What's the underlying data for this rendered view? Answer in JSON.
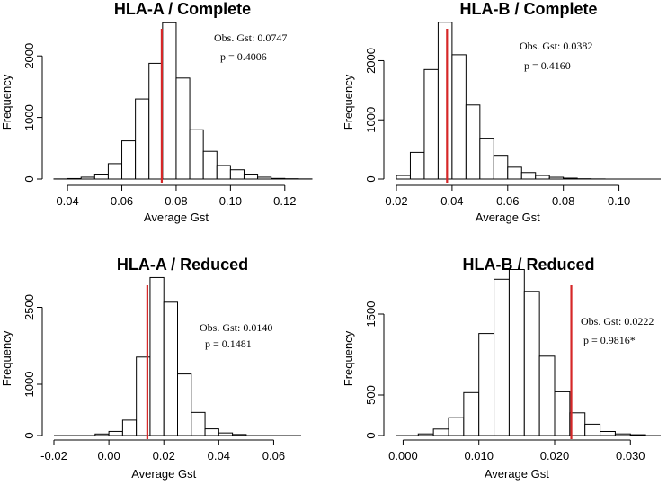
{
  "colors": {
    "observed_line": "#d62728",
    "bar_fill": "#ffffff",
    "bar_stroke": "#000000"
  },
  "chart_data": [
    {
      "type": "bar",
      "title": "HLA-A / Complete",
      "xlabel": "Average Gst",
      "ylabel": "Frequency",
      "xlim": [
        0.035,
        0.13
      ],
      "ylim": [
        0,
        2500
      ],
      "xticks": [
        0.04,
        0.06,
        0.08,
        0.1,
        0.12
      ],
      "xtick_labels": [
        "0.04",
        "0.06",
        "0.08",
        "0.10",
        "0.12"
      ],
      "yticks": [
        0,
        1000,
        2000
      ],
      "ytick_labels": [
        "0",
        "1000",
        "2000"
      ],
      "bin_start": 0.035,
      "bin_width": 0.005,
      "values": [
        2,
        8,
        30,
        80,
        250,
        620,
        1300,
        1880,
        2540,
        1640,
        800,
        450,
        220,
        150,
        80,
        30,
        10,
        5,
        2
      ],
      "observed": 0.0747,
      "annotation": [
        "Obs. Gst: 0.0747",
        "p = 0.4006"
      ]
    },
    {
      "type": "bar",
      "title": "HLA-B / Complete",
      "xlabel": "Average Gst",
      "ylabel": "Frequency",
      "xlim": [
        0.02,
        0.115
      ],
      "ylim": [
        0,
        2600
      ],
      "xticks": [
        0.02,
        0.04,
        0.06,
        0.08,
        0.1
      ],
      "xtick_labels": [
        "0.02",
        "0.04",
        "0.06",
        "0.08",
        "0.10"
      ],
      "yticks": [
        0,
        1000,
        2000
      ],
      "ytick_labels": [
        "0",
        "1000",
        "2000"
      ],
      "bin_start": 0.02,
      "bin_width": 0.005,
      "values": [
        60,
        450,
        1850,
        2650,
        2100,
        1250,
        690,
        400,
        200,
        110,
        60,
        30,
        15,
        5,
        2
      ],
      "observed": 0.0382,
      "annotation": [
        "Obs. Gst: 0.0382",
        "p = 0.4160"
      ]
    },
    {
      "type": "bar",
      "title": "HLA-A / Reduced",
      "xlabel": "Average Gst",
      "ylabel": "Frequency",
      "xlim": [
        -0.02,
        0.07
      ],
      "ylim": [
        0,
        3000
      ],
      "xticks": [
        -0.02,
        0.0,
        0.02,
        0.04,
        0.06
      ],
      "xtick_labels": [
        "-0.02",
        "0.00",
        "0.02",
        "0.04",
        "0.06"
      ],
      "yticks": [
        0,
        1000,
        2500
      ],
      "ytick_labels": [
        "0",
        "1000",
        "2500"
      ],
      "bin_start": -0.005,
      "bin_width": 0.005,
      "values": [
        30,
        80,
        300,
        1530,
        3080,
        2600,
        1200,
        450,
        130,
        50,
        20
      ],
      "observed": 0.014,
      "annotation": [
        "Obs. Gst: 0.0140",
        "p = 0.1481"
      ]
    },
    {
      "type": "bar",
      "title": "HLA-B / Reduced",
      "xlabel": "Average Gst",
      "ylabel": "Frequency",
      "xlim": [
        -0.001,
        0.034
      ],
      "ylim": [
        0,
        1900
      ],
      "xticks": [
        0.0,
        0.01,
        0.02,
        0.03
      ],
      "xtick_labels": [
        "0.000",
        "0.010",
        "0.020",
        "0.030"
      ],
      "yticks": [
        0,
        500,
        1500
      ],
      "ytick_labels": [
        "0",
        "500",
        "1500"
      ],
      "bin_start": 0.002,
      "bin_width": 0.002,
      "values": [
        20,
        80,
        220,
        530,
        1260,
        1930,
        2050,
        1780,
        980,
        540,
        280,
        140,
        50,
        20,
        10
      ],
      "observed": 0.0222,
      "annotation": [
        "Obs. Gst: 0.0222",
        "p = 0.9816*"
      ]
    }
  ]
}
